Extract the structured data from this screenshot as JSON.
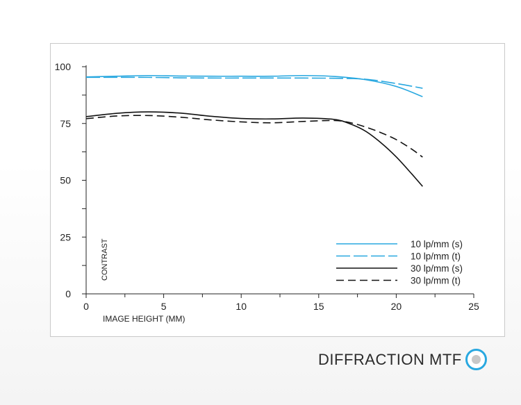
{
  "chart_data": {
    "type": "line",
    "xlabel": "IMAGE HEIGHT (MM)",
    "ylabel": "CONTRAST",
    "xlim": [
      0,
      25
    ],
    "ylim": [
      0,
      100
    ],
    "xticks": [
      0,
      5,
      10,
      15,
      20,
      25
    ],
    "yticks": [
      0,
      25,
      50,
      75,
      100
    ],
    "legend_position": "bottom-right",
    "grid": false,
    "series": [
      {
        "name": "10 lp/mm (s)",
        "color": "#29a8e0",
        "dash": "solid",
        "x": [
          0,
          2,
          4,
          6,
          8,
          10,
          12,
          14,
          16,
          18,
          20,
          21.7
        ],
        "y": [
          95.5,
          95.8,
          96.1,
          95.9,
          95.8,
          95.8,
          95.8,
          96.1,
          95.7,
          94.3,
          91.3,
          86.8
        ]
      },
      {
        "name": "10 lp/mm (t)",
        "color": "#29a8e0",
        "dash": "long-dash",
        "x": [
          0,
          2,
          4,
          6,
          8,
          10,
          12,
          14,
          16,
          18,
          20,
          21.7
        ],
        "y": [
          95.3,
          95.3,
          95.3,
          95.1,
          95.0,
          95.0,
          95.0,
          95.0,
          94.9,
          94.5,
          92.6,
          90.5
        ]
      },
      {
        "name": "30 lp/mm (s)",
        "color": "#111111",
        "dash": "solid",
        "x": [
          0,
          2,
          4,
          6,
          8,
          10,
          12,
          14,
          16,
          17,
          18,
          19,
          20,
          21,
          21.7
        ],
        "y": [
          78.0,
          79.5,
          80.1,
          79.6,
          78.2,
          77.2,
          77.0,
          77.4,
          76.8,
          74.9,
          71.7,
          66.6,
          60.3,
          52.8,
          47.3
        ]
      },
      {
        "name": "30 lp/mm (t)",
        "color": "#111111",
        "dash": "dash",
        "x": [
          0,
          2,
          4,
          6,
          8,
          10,
          12,
          14,
          16,
          17,
          18,
          19,
          20,
          21,
          21.7
        ],
        "y": [
          77.1,
          78.3,
          78.5,
          77.8,
          76.6,
          75.7,
          75.3,
          75.9,
          76.3,
          75.4,
          73.5,
          71.0,
          67.9,
          63.7,
          60.2
        ]
      }
    ]
  },
  "footer": {
    "label": "DIFFRACTION MTF",
    "toggle_icon": "radio-toggle-icon"
  }
}
